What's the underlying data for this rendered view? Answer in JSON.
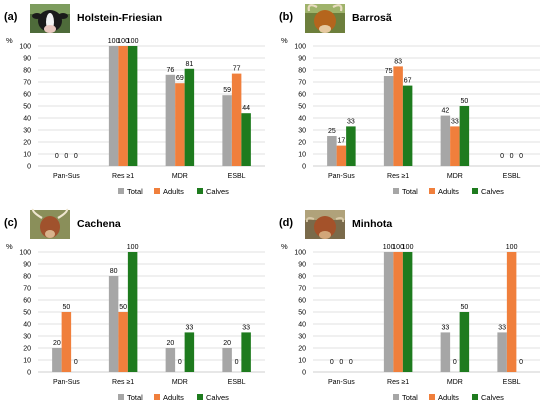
{
  "colors": {
    "total": "#a6a6a6",
    "adults": "#f07f3c",
    "calves": "#1e7b1e",
    "grid": "#d9d9d9",
    "axis": "#bfbfbf",
    "text": "#000000"
  },
  "legend_labels": [
    "Total",
    "Adults",
    "Calves"
  ],
  "y_unit": "%",
  "chart_data": [
    {
      "type": "bar",
      "panel_label": "(a)",
      "title": "Holstein-Friesian",
      "photo": "holstein-friesian-cow-photo",
      "categories": [
        "Pan-Sus",
        "Res ≥1",
        "MDR",
        "ESBL"
      ],
      "series": [
        {
          "name": "Total",
          "values": [
            0,
            100,
            76,
            59
          ]
        },
        {
          "name": "Adults",
          "values": [
            0,
            100,
            69,
            77
          ]
        },
        {
          "name": "Calves",
          "values": [
            0,
            100,
            81,
            44
          ]
        }
      ],
      "ylim": [
        0,
        100
      ],
      "yticks": [
        0,
        10,
        20,
        30,
        40,
        50,
        60,
        70,
        80,
        90,
        100
      ],
      "grid": true,
      "legend": "bottom"
    },
    {
      "type": "bar",
      "panel_label": "(b)",
      "title": "Barrosã",
      "photo": "barrosa-cow-photo",
      "categories": [
        "Pan-Sus",
        "Res ≥1",
        "MDR",
        "ESBL"
      ],
      "series": [
        {
          "name": "Total",
          "values": [
            25,
            75,
            42,
            0
          ]
        },
        {
          "name": "Adults",
          "values": [
            17,
            83,
            33,
            0
          ]
        },
        {
          "name": "Calves",
          "values": [
            33,
            67,
            50,
            0
          ]
        }
      ],
      "ylim": [
        0,
        100
      ],
      "yticks": [
        0,
        10,
        20,
        30,
        40,
        50,
        60,
        70,
        80,
        90,
        100
      ],
      "grid": true,
      "legend": "bottom"
    },
    {
      "type": "bar",
      "panel_label": "(c)",
      "title": "Cachena",
      "photo": "cachena-cow-photo",
      "categories": [
        "Pan-Sus",
        "Res ≥1",
        "MDR",
        "ESBL"
      ],
      "series": [
        {
          "name": "Total",
          "values": [
            20,
            80,
            20,
            20
          ]
        },
        {
          "name": "Adults",
          "values": [
            50,
            50,
            0,
            0
          ]
        },
        {
          "name": "Calves",
          "values": [
            0,
            100,
            33,
            33
          ]
        }
      ],
      "ylim": [
        0,
        100
      ],
      "yticks": [
        0,
        10,
        20,
        30,
        40,
        50,
        60,
        70,
        80,
        90,
        100
      ],
      "grid": true,
      "legend": "bottom"
    },
    {
      "type": "bar",
      "panel_label": "(d)",
      "title": "Minhota",
      "photo": "minhota-cow-photo",
      "categories": [
        "Pan-Sus",
        "Res ≥1",
        "MDR",
        "ESBL"
      ],
      "series": [
        {
          "name": "Total",
          "values": [
            0,
            100,
            33,
            33
          ]
        },
        {
          "name": "Adults",
          "values": [
            0,
            100,
            0,
            100
          ]
        },
        {
          "name": "Calves",
          "values": [
            0,
            100,
            50,
            0
          ]
        }
      ],
      "ylim": [
        0,
        100
      ],
      "yticks": [
        0,
        10,
        20,
        30,
        40,
        50,
        60,
        70,
        80,
        90,
        100
      ],
      "grid": true,
      "legend": "bottom"
    }
  ]
}
